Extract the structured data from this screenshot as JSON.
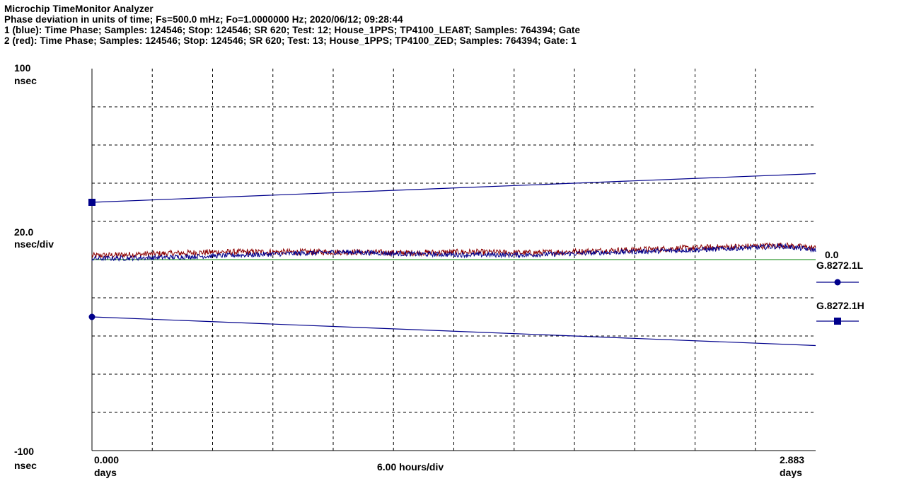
{
  "header": {
    "app_title": "Microchip TimeMonitor Analyzer",
    "line2": "Phase deviation in units of time;   Fs=500.0 mHz; Fo=1.0000000 Hz; 2020/06/12; 09:28:44",
    "line3": "1 (blue): Time Phase;  Samples: 124546;  Stop: 124546;  SR 620;  Test: 12;   House_1PPS;   TP4100_LEA8T;   Samples: 764394;   Gate",
    "line4": "2 (red): Time Phase;  Samples: 124546;  Stop: 124546;  SR 620;  Test: 13;   House_1PPS;   TP4100_ZED;   Samples: 764394;   Gate: 1"
  },
  "yaxis": {
    "top_value": "100",
    "top_unit": "nsec",
    "scale_value": "20.0",
    "scale_unit": "nsec/div",
    "bottom_value": "-100",
    "bottom_unit": "nsec"
  },
  "xaxis": {
    "start_value": "0.000",
    "start_unit": "days",
    "end_value": "2.883",
    "end_unit": "days",
    "scale": "6.00 hours/div"
  },
  "zero_label": "0.0",
  "masks": {
    "low_label": "G.8272.1L",
    "high_label": "G.8272.1H"
  },
  "colors": {
    "blue": "#00008b",
    "red": "#8b0000",
    "mask_line": "#00008b",
    "zero_line": "#008000",
    "grid": "#000000"
  },
  "chart_data": {
    "type": "line",
    "xlabel": "6.00 hours/div",
    "ylabel": "20.0 nsec/div",
    "xlim": [
      0,
      2.883
    ],
    "ylim": [
      -100,
      100
    ],
    "grid": true,
    "series": [
      {
        "name": "1 (blue): Time Phase",
        "color": "#00008b",
        "x": [
          0,
          0.25,
          0.5,
          0.75,
          1.0,
          1.25,
          1.5,
          1.75,
          2.0,
          2.25,
          2.5,
          2.75,
          2.883
        ],
        "y": [
          0.5,
          1.0,
          2.0,
          3.0,
          4.0,
          3.0,
          2.5,
          2.5,
          3.5,
          4.5,
          5.5,
          7.0,
          5.0
        ]
      },
      {
        "name": "2 (red): Time Phase",
        "color": "#8b0000",
        "x": [
          0,
          0.25,
          0.5,
          0.75,
          1.0,
          1.25,
          1.5,
          1.75,
          2.0,
          2.25,
          2.5,
          2.75,
          2.883
        ],
        "y": [
          2.0,
          3.0,
          4.0,
          4.0,
          4.0,
          3.5,
          4.0,
          3.5,
          4.5,
          5.5,
          6.5,
          7.5,
          6.0
        ]
      },
      {
        "name": "G.8272.1L",
        "color": "#00008b",
        "x": [
          0,
          2.883
        ],
        "y": [
          -30,
          -45
        ]
      },
      {
        "name": "G.8272.1H",
        "color": "#00008b",
        "x": [
          0,
          2.883
        ],
        "y": [
          30,
          45
        ]
      }
    ]
  }
}
